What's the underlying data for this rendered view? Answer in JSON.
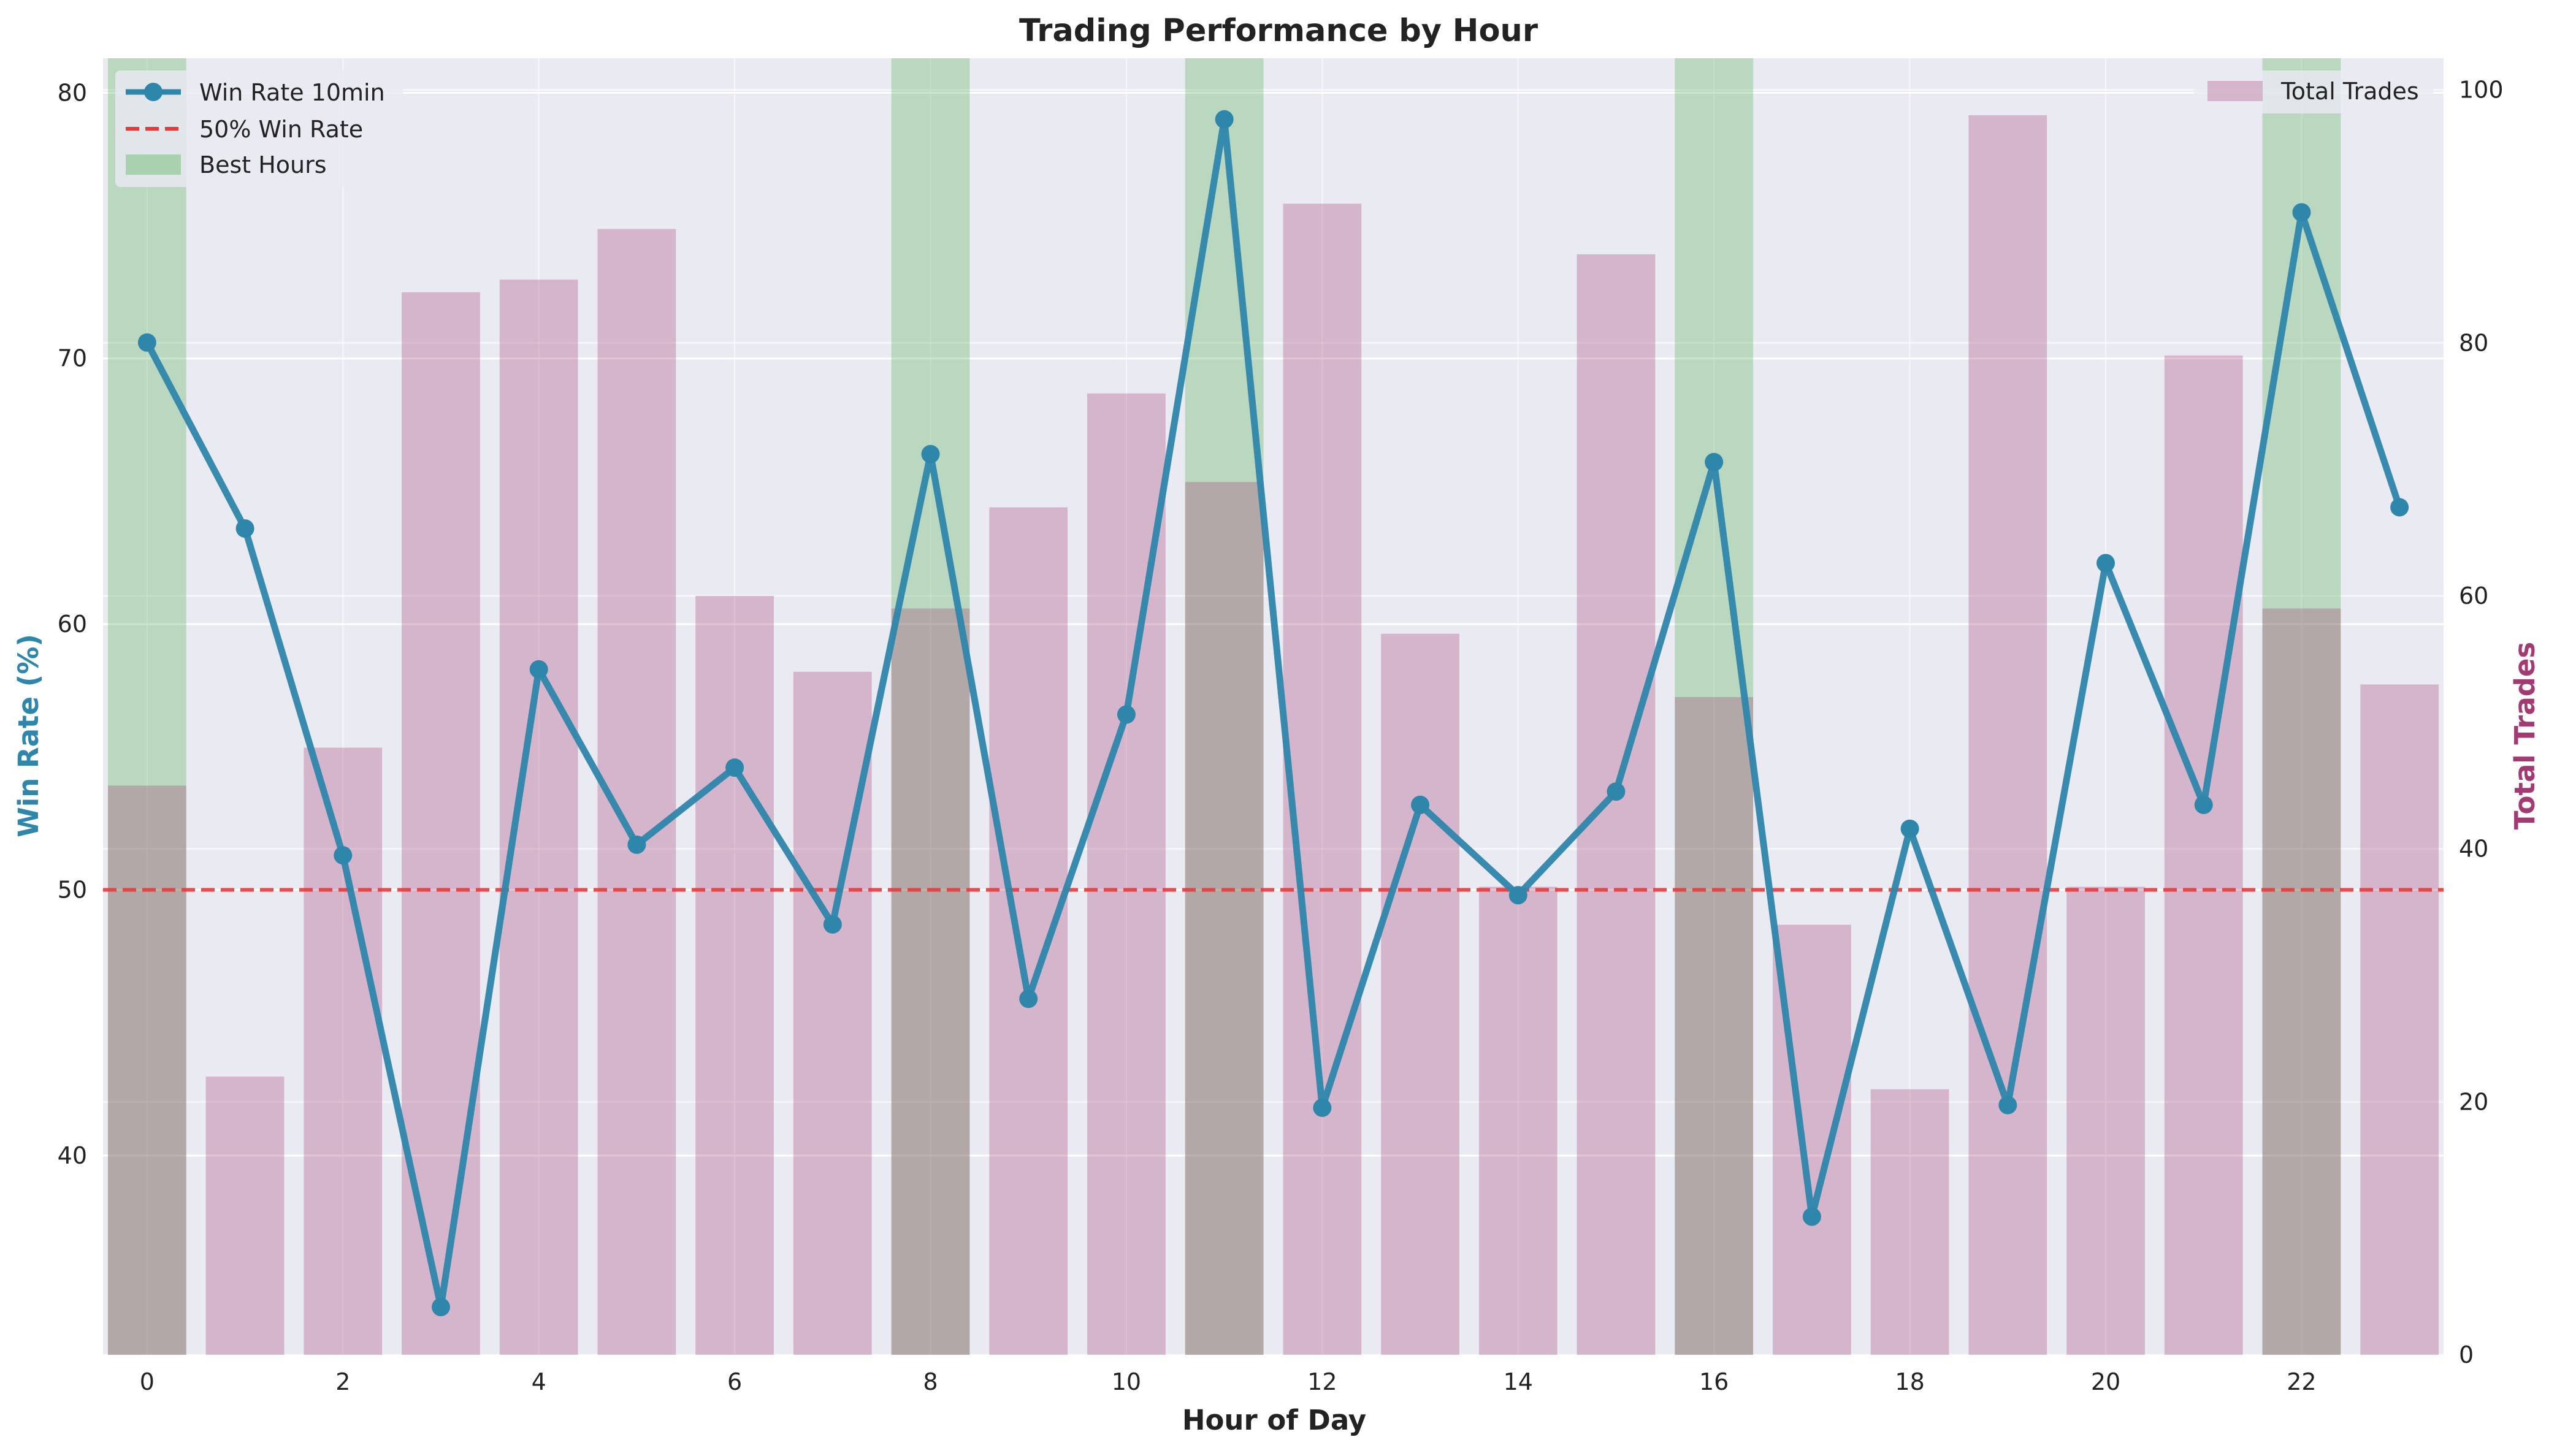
{
  "chart_data": {
    "type": "bar+line",
    "title": "Trading Performance by Hour",
    "xlabel": "Hour of Day",
    "ylabel_left": "Win Rate (%)",
    "ylabel_right": "Total Trades",
    "x": [
      0,
      1,
      2,
      3,
      4,
      5,
      6,
      7,
      8,
      9,
      10,
      11,
      12,
      13,
      14,
      15,
      16,
      17,
      18,
      19,
      20,
      21,
      22,
      23
    ],
    "x_ticks": [
      0,
      2,
      4,
      6,
      8,
      10,
      12,
      14,
      16,
      18,
      20,
      22
    ],
    "ylim_left": [
      32.5,
      81.3
    ],
    "yticks_left": [
      40,
      50,
      60,
      70,
      80
    ],
    "ylim_right": [
      0,
      102.5
    ],
    "yticks_right": [
      0,
      20,
      40,
      60,
      80,
      100
    ],
    "grid": true,
    "reference_line": {
      "name": "50% Win Rate",
      "y": 50,
      "color": "#e8383a"
    },
    "best_hours": {
      "name": "Best Hours",
      "hours": [
        0,
        8,
        11,
        16,
        22
      ],
      "color": "#2ca02c"
    },
    "series": [
      {
        "name": "Win Rate 10min",
        "axis": "left",
        "kind": "line",
        "color": "#2e86ab",
        "values": [
          70.6,
          63.6,
          51.3,
          34.3,
          58.3,
          51.7,
          54.6,
          48.7,
          66.4,
          45.9,
          56.6,
          79.0,
          41.8,
          53.2,
          49.8,
          53.7,
          66.1,
          37.7,
          52.3,
          41.9,
          62.3,
          53.2,
          75.5,
          64.4
        ]
      },
      {
        "name": "Total Trades",
        "axis": "right",
        "kind": "bar",
        "color": "#a23b72",
        "values": [
          45,
          22,
          48,
          84,
          85,
          89,
          60,
          54,
          59,
          67,
          76,
          69,
          91,
          57,
          37,
          87,
          52,
          34,
          21,
          98,
          37,
          79,
          59,
          53
        ]
      }
    ],
    "legend_left": [
      "Win Rate 10min",
      "50% Win Rate",
      "Best Hours"
    ],
    "legend_right": [
      "Total Trades"
    ],
    "legend_placement": {
      "left": "top-left",
      "right": "top-right"
    }
  }
}
